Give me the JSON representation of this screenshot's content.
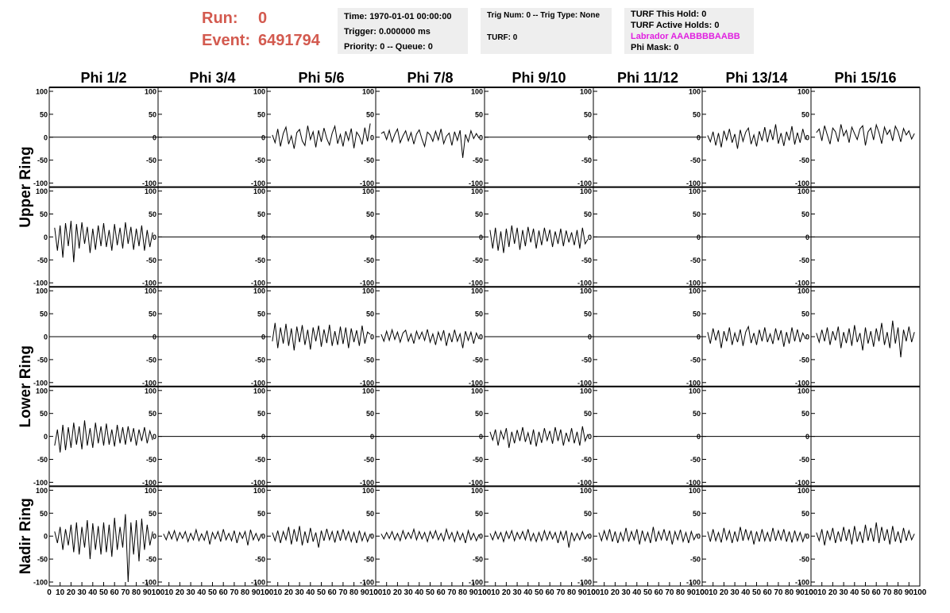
{
  "header": {
    "run_label": "Run:",
    "run": "0",
    "event_label": "Event:",
    "event": "6491794",
    "box1": [
      "Time: 1970-01-01 00:00:00",
      "Trigger: 0.000000 ms",
      "Priority: 0 -- Queue: 0"
    ],
    "box2": [
      "Trig Num: 0 -- Trig Type: None",
      "TURF: 0"
    ],
    "box3": [
      "TURF This Hold: 0",
      "TURF Active Holds: 0",
      "Labrador AAABBBBAABB",
      "Phi Mask: 0"
    ]
  },
  "chart_data": {
    "type": "line",
    "columns": [
      "Phi 1/2",
      "Phi 3/4",
      "Phi 5/6",
      "Phi 7/8",
      "Phi 9/10",
      "Phi 11/12",
      "Phi 13/14",
      "Phi 15/16"
    ],
    "rows": [
      "Upper Ring",
      "Lower Ring",
      "Nadir Ring"
    ],
    "ylim": [
      -100,
      100
    ],
    "yticks": [
      -100,
      -50,
      0,
      50,
      100
    ],
    "xlim": [
      0,
      100
    ],
    "xticks": [
      0,
      10,
      20,
      30,
      40,
      50,
      60,
      70,
      80,
      90,
      100
    ],
    "color": "#000000",
    "x": [
      5,
      7.5,
      10,
      12.5,
      15,
      17.5,
      20,
      22.5,
      25,
      27.5,
      30,
      32.5,
      35,
      37.5,
      40,
      42.5,
      45,
      47.5,
      50,
      52.5,
      55,
      57.5,
      60,
      62.5,
      65,
      67.5,
      70,
      72.5,
      75,
      77.5,
      80,
      82.5,
      85,
      87.5,
      90,
      92.5,
      95
    ],
    "panels": [
      {
        "x": [
          0,
          100
        ],
        "values": [
          0,
          0
        ]
      },
      {
        "x": [
          0,
          100
        ],
        "values": [
          0,
          0
        ]
      },
      {
        "values": [
          5,
          -12,
          18,
          -20,
          8,
          22,
          -15,
          3,
          -25,
          10,
          17,
          -8,
          -18,
          25,
          -5,
          12,
          -22,
          15,
          -10,
          20,
          -3,
          -17,
          9,
          24,
          -14,
          6,
          -20,
          13,
          -7,
          19,
          -24,
          11,
          2,
          -16,
          21,
          -9,
          30
        ]
      },
      {
        "values": [
          8,
          12,
          -5,
          15,
          -10,
          6,
          18,
          -12,
          3,
          14,
          -8,
          10,
          -15,
          7,
          16,
          -4,
          -20,
          11,
          5,
          -9,
          13,
          -6,
          18,
          -14,
          2,
          9,
          -18,
          12,
          -7,
          15,
          -45,
          6,
          -10,
          14,
          -3,
          8,
          -2
        ]
      },
      {
        "x": [
          0,
          100
        ],
        "values": [
          0,
          0
        ]
      },
      {
        "x": [
          0,
          100
        ],
        "values": [
          0,
          0
        ]
      },
      {
        "values": [
          4,
          -10,
          12,
          -18,
          9,
          -22,
          14,
          -6,
          18,
          -12,
          7,
          -25,
          16,
          -9,
          11,
          20,
          -15,
          5,
          -20,
          13,
          -8,
          22,
          -11,
          17,
          -6,
          28,
          -14,
          9,
          -19,
          12,
          -7,
          24,
          -16,
          10,
          -12,
          18,
          -5
        ]
      },
      {
        "values": [
          10,
          18,
          -8,
          25,
          5,
          -15,
          20,
          12,
          -10,
          28,
          3,
          15,
          -12,
          22,
          8,
          -5,
          18,
          25,
          -18,
          12,
          20,
          -6,
          27,
          10,
          -14,
          22,
          6,
          16,
          -8,
          24,
          12,
          -10,
          19,
          5,
          14,
          -4,
          8
        ]
      },
      {
        "values": [
          20,
          -30,
          25,
          -45,
          30,
          -20,
          35,
          -55,
          28,
          -25,
          32,
          -15,
          22,
          -35,
          18,
          -28,
          25,
          -20,
          30,
          -22,
          15,
          -30,
          28,
          -18,
          20,
          -25,
          32,
          -15,
          22,
          -28,
          18,
          -20,
          25,
          -30,
          15,
          -22,
          10
        ]
      },
      {
        "x": [
          0,
          100
        ],
        "values": [
          0,
          0
        ]
      },
      {
        "x": [
          0,
          100
        ],
        "values": [
          0,
          0
        ]
      },
      {
        "x": [
          0,
          100
        ],
        "values": [
          0,
          0
        ]
      },
      {
        "values": [
          15,
          -25,
          20,
          -30,
          12,
          -35,
          18,
          -22,
          25,
          -15,
          20,
          -28,
          15,
          -20,
          22,
          -12,
          18,
          -25,
          14,
          -18,
          20,
          -10,
          16,
          -22,
          12,
          -15,
          18,
          -20,
          14,
          -12,
          10,
          -18,
          15,
          -25,
          20,
          -15,
          -5
        ]
      },
      {
        "x": [
          0,
          100
        ],
        "values": [
          0,
          0
        ]
      },
      {
        "x": [
          0,
          100
        ],
        "values": [
          0,
          0
        ]
      },
      {
        "x": [
          0,
          100
        ],
        "values": [
          0,
          0
        ]
      },
      {
        "x": [
          0,
          100
        ],
        "values": [
          0,
          0
        ]
      },
      {
        "x": [
          0,
          100
        ],
        "values": [
          0,
          0
        ]
      },
      {
        "values": [
          -10,
          30,
          -25,
          20,
          -15,
          28,
          -20,
          18,
          -30,
          22,
          -12,
          25,
          -18,
          15,
          -28,
          20,
          -10,
          24,
          -22,
          16,
          -14,
          26,
          -20,
          12,
          -18,
          22,
          -16,
          20,
          -25,
          18,
          -12,
          14,
          -20,
          24,
          -15,
          10,
          5
        ]
      },
      {
        "values": [
          5,
          -10,
          12,
          -8,
          15,
          -6,
          10,
          -12,
          8,
          14,
          -10,
          6,
          -15,
          12,
          -5,
          10,
          -8,
          16,
          -12,
          6,
          -18,
          10,
          -8,
          14,
          -20,
          8,
          -12,
          15,
          -10,
          6,
          -25,
          12,
          -8,
          10,
          -15,
          8,
          -5
        ]
      },
      {
        "x": [
          0,
          100
        ],
        "values": [
          0,
          0
        ]
      },
      {
        "x": [
          0,
          100
        ],
        "values": [
          0,
          0
        ]
      },
      {
        "values": [
          10,
          -15,
          18,
          -8,
          14,
          -25,
          12,
          -10,
          20,
          -18,
          8,
          -12,
          16,
          -20,
          10,
          22,
          -14,
          8,
          -18,
          15,
          -10,
          20,
          -12,
          6,
          -16,
          18,
          -8,
          14,
          -22,
          10,
          -15,
          20,
          -10,
          16,
          -12,
          8,
          -5
        ]
      },
      {
        "values": [
          8,
          -12,
          15,
          -10,
          20,
          -18,
          12,
          -8,
          22,
          -25,
          10,
          -14,
          18,
          -20,
          25,
          -12,
          8,
          -30,
          20,
          -15,
          12,
          -22,
          18,
          -10,
          30,
          -18,
          10,
          -25,
          35,
          -15,
          20,
          -45,
          15,
          -10,
          22,
          -12,
          10
        ]
      },
      {
        "values": [
          -20,
          15,
          -35,
          25,
          -30,
          20,
          -25,
          30,
          -18,
          22,
          -28,
          35,
          -20,
          18,
          -25,
          30,
          -15,
          22,
          -20,
          28,
          -18,
          15,
          -22,
          25,
          -15,
          20,
          -18,
          22,
          -12,
          18,
          -20,
          15,
          -10,
          20,
          -15,
          12,
          -8
        ]
      },
      {
        "x": [
          0,
          100
        ],
        "values": [
          0,
          0
        ]
      },
      {
        "x": [
          0,
          100
        ],
        "values": [
          0,
          0
        ]
      },
      {
        "x": [
          0,
          100
        ],
        "values": [
          0,
          0
        ]
      },
      {
        "values": [
          10,
          -8,
          15,
          -20,
          12,
          -6,
          18,
          -25,
          10,
          -15,
          14,
          -10,
          20,
          -12,
          8,
          -18,
          15,
          -22,
          10,
          -14,
          18,
          -8,
          12,
          -16,
          20,
          -10,
          15,
          -20,
          8,
          -12,
          18,
          -15,
          10,
          -20,
          22,
          -10,
          5
        ]
      },
      {
        "x": [
          0,
          100
        ],
        "values": [
          0,
          0
        ]
      },
      {
        "x": [
          0,
          100
        ],
        "values": [
          0,
          0
        ]
      },
      {
        "x": [
          0,
          100
        ],
        "values": [
          0,
          0
        ]
      },
      {
        "values": [
          10,
          -15,
          20,
          -30,
          15,
          -20,
          25,
          -35,
          30,
          -40,
          20,
          -25,
          35,
          -50,
          28,
          -30,
          22,
          -40,
          30,
          -35,
          25,
          -45,
          40,
          -30,
          20,
          -25,
          48,
          -100,
          30,
          -40,
          35,
          -55,
          38,
          -30,
          25,
          -20,
          10
        ]
      },
      {
        "values": [
          5,
          -8,
          10,
          -6,
          12,
          -10,
          8,
          -5,
          10,
          -12,
          6,
          -8,
          14,
          -10,
          5,
          -9,
          12,
          -18,
          8,
          -6,
          10,
          -12,
          15,
          -8,
          6,
          -10,
          12,
          -15,
          8,
          -5,
          10,
          -20,
          14,
          -8,
          6,
          -10,
          5
        ]
      },
      {
        "values": [
          8,
          -10,
          12,
          -15,
          10,
          -8,
          20,
          -18,
          15,
          -12,
          22,
          -20,
          10,
          -15,
          18,
          -12,
          8,
          -25,
          12,
          -10,
          16,
          -8,
          10,
          -14,
          12,
          -10,
          15,
          -8,
          10,
          -12,
          8,
          -15,
          12,
          -10,
          8,
          -12,
          5
        ]
      },
      {
        "values": [
          5,
          -6,
          8,
          -5,
          10,
          -8,
          6,
          -10,
          12,
          -6,
          8,
          -5,
          15,
          -8,
          10,
          -6,
          8,
          -12,
          10,
          -5,
          12,
          -8,
          6,
          -10,
          15,
          -6,
          8,
          -12,
          10,
          -8,
          6,
          -15,
          12,
          -8,
          6,
          -10,
          4
        ]
      },
      {
        "values": [
          6,
          -8,
          10,
          -6,
          8,
          -12,
          10,
          -5,
          12,
          -10,
          8,
          -6,
          10,
          -8,
          15,
          -10,
          6,
          -12,
          8,
          -10,
          12,
          -8,
          10,
          -6,
          8,
          -15,
          10,
          -8,
          12,
          -25,
          8,
          -10,
          6,
          -8,
          10,
          -6,
          4
        ]
      },
      {
        "values": [
          8,
          -10,
          12,
          -8,
          15,
          -12,
          10,
          -15,
          8,
          -10,
          18,
          -12,
          10,
          -8,
          15,
          -18,
          12,
          -10,
          8,
          -15,
          20,
          -12,
          10,
          -8,
          15,
          -10,
          12,
          -18,
          10,
          -8,
          14,
          -12,
          8,
          -15,
          10,
          -8,
          5
        ]
      },
      {
        "values": [
          10,
          -12,
          15,
          -10,
          8,
          -14,
          18,
          -8,
          12,
          -15,
          10,
          -12,
          20,
          -10,
          15,
          -8,
          12,
          -18,
          10,
          -12,
          15,
          -10,
          8,
          -12,
          18,
          -10,
          12,
          -8,
          15,
          -12,
          10,
          -14,
          12,
          -10,
          8,
          -12,
          6
        ]
      },
      {
        "values": [
          8,
          -10,
          15,
          -20,
          12,
          -8,
          18,
          -15,
          10,
          -12,
          20,
          -10,
          15,
          -18,
          22,
          -12,
          10,
          -15,
          25,
          -10,
          18,
          -12,
          30,
          -15,
          20,
          -10,
          15,
          -18,
          22,
          -12,
          10,
          -15,
          18,
          -10,
          12,
          -8,
          5
        ]
      }
    ]
  }
}
